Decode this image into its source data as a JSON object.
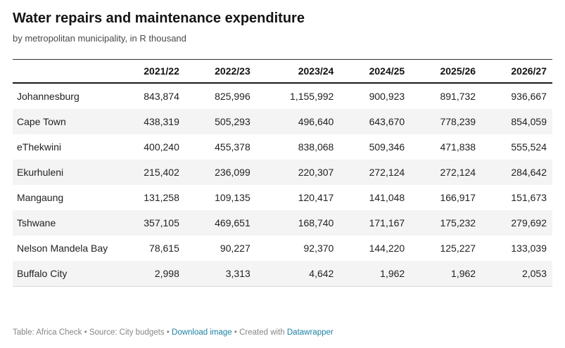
{
  "header": {
    "title": "Water repairs and maintenance expenditure",
    "subtitle": "by metropolitan municipality, in R thousand"
  },
  "chart_data": {
    "type": "table",
    "title": "Water repairs and maintenance expenditure",
    "subtitle": "by metropolitan municipality, in R thousand",
    "columns": [
      "2021/22",
      "2022/23",
      "2023/24",
      "2024/25",
      "2025/26",
      "2026/27"
    ],
    "rows": [
      {
        "label": "Johannesburg",
        "values": [
          843874,
          825996,
          1155992,
          900923,
          891732,
          936667
        ]
      },
      {
        "label": "Cape Town",
        "values": [
          438319,
          505293,
          496640,
          643670,
          778239,
          854059
        ]
      },
      {
        "label": "eThekwini",
        "values": [
          400240,
          455378,
          838068,
          509346,
          471838,
          555524
        ]
      },
      {
        "label": "Ekurhuleni",
        "values": [
          215402,
          236099,
          220307,
          272124,
          272124,
          284642
        ]
      },
      {
        "label": "Mangaung",
        "values": [
          131258,
          109135,
          120417,
          141048,
          166917,
          151673
        ]
      },
      {
        "label": "Tshwane",
        "values": [
          357105,
          469651,
          168740,
          171167,
          175232,
          279692
        ]
      },
      {
        "label": "Nelson Mandela Bay",
        "values": [
          78615,
          90227,
          92370,
          144220,
          125227,
          133039
        ]
      },
      {
        "label": "Buffalo City",
        "values": [
          2998,
          3313,
          4642,
          1962,
          1962,
          2053
        ]
      }
    ]
  },
  "footer": {
    "prefix": "Table: Africa Check • Source: City budgets • ",
    "download_label": "Download image",
    "created_with": " • Created with ",
    "datawrapper_label": "Datawrapper"
  },
  "colors": {
    "stripe": "#f4f4f4",
    "link": "#1d81a2",
    "header_border": "#1a1a1a"
  }
}
